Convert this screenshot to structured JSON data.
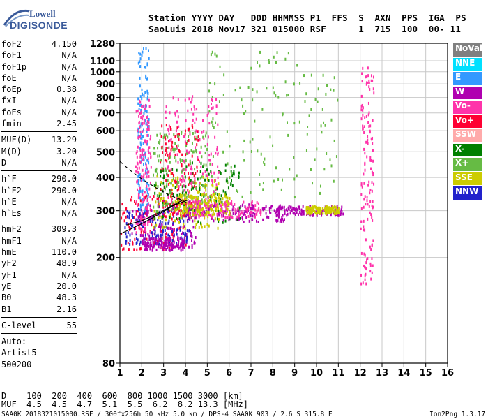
{
  "brand": {
    "line1": "Lowell",
    "line2": "DIGISONDE"
  },
  "header": {
    "line1": "Station YYYY DAY   DDD HHMMSS P1  FFS  S  AXN  PPS  IGA  PS",
    "line2": "SaoLuis 2018 Nov17 321 015000 RSF      1  715  100  00- 11"
  },
  "params": [
    {
      "group": [
        {
          "name": "foF2",
          "value": "4.150"
        },
        {
          "name": "foF1",
          "value": "N/A"
        },
        {
          "name": "foF1p",
          "value": "N/A"
        },
        {
          "name": "foE",
          "value": "N/A"
        },
        {
          "name": "foEp",
          "value": "0.38"
        },
        {
          "name": "fxI",
          "value": "N/A"
        },
        {
          "name": "foEs",
          "value": "N/A"
        },
        {
          "name": "fmin",
          "value": "2.45"
        }
      ]
    },
    {
      "group": [
        {
          "name": "MUF(D)",
          "value": "13.29"
        },
        {
          "name": "M(D)",
          "value": "3.20"
        },
        {
          "name": "D",
          "value": "N/A"
        }
      ]
    },
    {
      "group": [
        {
          "name": "h`F",
          "value": "290.0"
        },
        {
          "name": "h`F2",
          "value": "290.0"
        },
        {
          "name": "h`E",
          "value": "N/A"
        },
        {
          "name": "h`Es",
          "value": "N/A"
        }
      ]
    },
    {
      "group": [
        {
          "name": "hmF2",
          "value": "309.3"
        },
        {
          "name": "hmF1",
          "value": "N/A"
        },
        {
          "name": "hmE",
          "value": "110.0"
        },
        {
          "name": "yF2",
          "value": "48.9"
        },
        {
          "name": "yF1",
          "value": "N/A"
        },
        {
          "name": "yE",
          "value": "20.0"
        },
        {
          "name": "B0",
          "value": "48.3"
        },
        {
          "name": "B1",
          "value": "2.16"
        }
      ]
    },
    {
      "group": [
        {
          "name": "C-level",
          "value": "55"
        }
      ]
    }
  ],
  "autoscaling": {
    "label": "Auto:",
    "artist": "Artist5",
    "code": "500200"
  },
  "legend": [
    {
      "label": "NoVal",
      "color": "#808080"
    },
    {
      "label": "NNE",
      "color": "#00e0ff"
    },
    {
      "label": "E",
      "color": "#3399ff"
    },
    {
      "label": "W",
      "color": "#b000b0"
    },
    {
      "label": "Vo-",
      "color": "#ff33aa"
    },
    {
      "label": "Vo+",
      "color": "#ff0033"
    },
    {
      "label": "SSW",
      "color": "#ffaaaa"
    },
    {
      "label": "X-",
      "color": "#008000"
    },
    {
      "label": "X+",
      "color": "#66bb44"
    },
    {
      "label": "SSE",
      "color": "#cccc00"
    },
    {
      "label": "NNW",
      "color": "#2222cc"
    }
  ],
  "footer": {
    "d_row": "D    100  200  400  600  800 1000 1500 3000 [km]",
    "muf_row": "MUF  4.5  4.5  4.7  5.1  5.5  6.2  8.2 13.3 [MHz]",
    "source": "SAA0K_2018321015000.RSF / 300fx256h 50 kHz 5.0 km / DPS-4 SAA0K 903 / 2.6 S 315.8 E",
    "version": "Ion2Png 1.3.17"
  },
  "chart_data": {
    "type": "scatter",
    "title": "",
    "xlabel": "",
    "ylabel": "",
    "xlim": [
      1,
      16
    ],
    "ylim": [
      80,
      1280
    ],
    "y_scale": "log",
    "x_ticks": [
      "1",
      "2",
      "3",
      "4",
      "5",
      "6",
      "7",
      "8",
      "9",
      "10",
      "11",
      "12",
      "13",
      "14",
      "15",
      "16"
    ],
    "y_ticks": [
      "80",
      "200",
      "300",
      "400",
      "500",
      "600",
      "700",
      "800",
      "900",
      "1000",
      "1100",
      "1280"
    ],
    "grid": true,
    "legend_position": "right",
    "traces": [
      {
        "name": "O-trace profile",
        "style": "solid",
        "points": [
          [
            1.0,
            245
          ],
          [
            1.5,
            256
          ],
          [
            2.0,
            268
          ],
          [
            2.5,
            282
          ],
          [
            3.0,
            298
          ],
          [
            3.5,
            315
          ],
          [
            4.15,
            330
          ]
        ]
      },
      {
        "name": "X-trace profile",
        "style": "solid",
        "points": [
          [
            1.3,
            265
          ],
          [
            2.0,
            275
          ],
          [
            2.7,
            292
          ],
          [
            3.3,
            310
          ],
          [
            3.9,
            330
          ]
        ]
      },
      {
        "name": "extrapolated topside",
        "style": "dashed",
        "points": [
          [
            1.0,
            460
          ],
          [
            1.4,
            430
          ],
          [
            2.0,
            395
          ],
          [
            2.6,
            368
          ],
          [
            3.2,
            345
          ],
          [
            3.8,
            330
          ],
          [
            4.15,
            318
          ]
        ]
      }
    ],
    "clusters": [
      {
        "x": [
          1.0,
          4.0
        ],
        "y": [
          215,
          345
        ],
        "color": "#ff0033"
      },
      {
        "x": [
          1.5,
          4.5
        ],
        "y": [
          220,
          330
        ],
        "color": "#b000b0"
      },
      {
        "x": [
          1.2,
          4.2
        ],
        "y": [
          225,
          310
        ],
        "color": "#2222cc"
      },
      {
        "x": [
          2.0,
          4.0
        ],
        "y": [
          215,
          240
        ],
        "color": "#b000b0"
      },
      {
        "x": [
          2.5,
          5.5
        ],
        "y": [
          260,
          420
        ],
        "color": "#cccc00"
      },
      {
        "x": [
          2.8,
          4.6
        ],
        "y": [
          290,
          640
        ],
        "color": "#ff0033"
      },
      {
        "x": [
          2.5,
          6.5
        ],
        "y": [
          270,
          460
        ],
        "color": "#008000"
      },
      {
        "x": [
          2.5,
          5.0
        ],
        "y": [
          300,
          600
        ],
        "color": "#66bb44"
      },
      {
        "x": [
          3.0,
          5.5
        ],
        "y": [
          300,
          820
        ],
        "color": "#ff33aa"
      },
      {
        "x": [
          4.0,
          8.5
        ],
        "y": [
          275,
          320
        ],
        "color": "#b000b0"
      },
      {
        "x": [
          4.0,
          7.5
        ],
        "y": [
          285,
          330
        ],
        "color": "#ff33aa"
      },
      {
        "x": [
          3.5,
          6.0
        ],
        "y": [
          290,
          350
        ],
        "color": "#cccc00"
      },
      {
        "x": [
          8.0,
          11.2
        ],
        "y": [
          290,
          315
        ],
        "color": "#b000b0"
      },
      {
        "x": [
          9.5,
          11.0
        ],
        "y": [
          295,
          315
        ],
        "color": "#cccc00"
      },
      {
        "x": [
          1.8,
          2.3
        ],
        "y": [
          300,
          1240
        ],
        "color": "#3399ff"
      },
      {
        "x": [
          1.7,
          2.4
        ],
        "y": [
          250,
          800
        ],
        "color": "#ff33aa"
      },
      {
        "x": [
          12.0,
          12.6
        ],
        "y": [
          160,
          1050
        ],
        "color": "#ff33aa"
      },
      {
        "x": [
          5.0,
          11.0
        ],
        "y": [
          340,
          1200
        ],
        "color": "#66bb44"
      }
    ]
  }
}
